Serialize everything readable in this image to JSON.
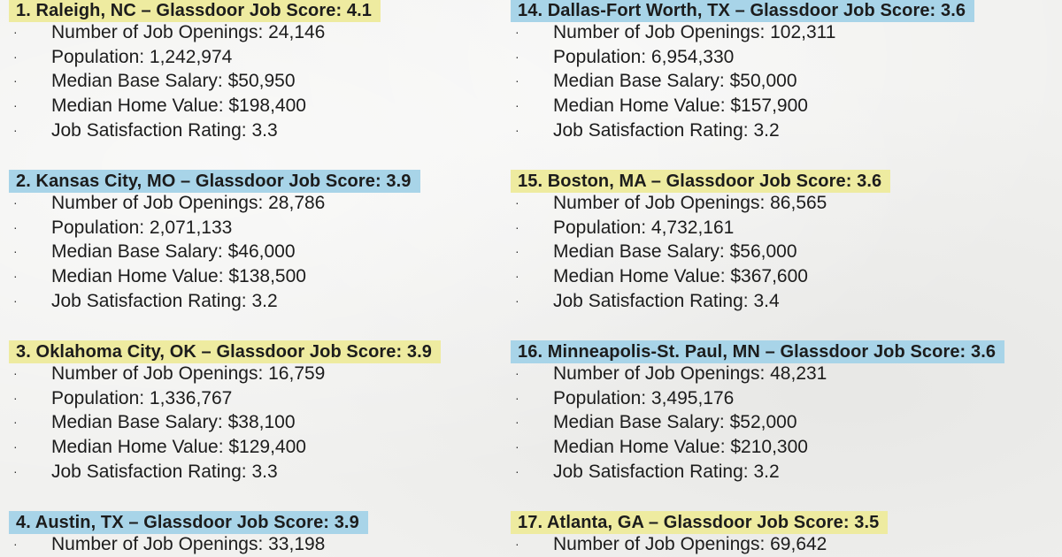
{
  "left_column": [
    {
      "header": "1. Raleigh, NC – Glassdoor Job Score: 4.1",
      "header_color": "yellow",
      "items": [
        "Number of Job Openings: 24,146",
        "Population: 1,242,974",
        "Median Base Salary: $50,950",
        "Median Home Value: $198,400",
        "Job Satisfaction Rating: 3.3"
      ]
    },
    {
      "header": "2. Kansas City, MO – Glassdoor Job Score: 3.9",
      "header_color": "blue",
      "items": [
        "Number of Job Openings: 28,786",
        "Population: 2,071,133",
        "Median Base Salary: $46,000",
        "Median Home Value: $138,500",
        "Job Satisfaction Rating: 3.2"
      ]
    },
    {
      "header": "3. Oklahoma City, OK – Glassdoor Job Score: 3.9",
      "header_color": "yellow",
      "items": [
        "Number of Job Openings: 16,759",
        "Population: 1,336,767",
        "Median Base Salary: $38,100",
        "Median Home Value: $129,400",
        "Job Satisfaction Rating: 3.3"
      ]
    },
    {
      "header": "4. Austin, TX – Glassdoor Job Score: 3.9",
      "header_color": "blue",
      "items": [
        "Number of Job Openings: 33,198"
      ]
    }
  ],
  "right_column": [
    {
      "header": "14. Dallas-Fort Worth, TX – Glassdoor Job Score: 3.6",
      "header_color": "blue",
      "items": [
        "Number of Job Openings: 102,311",
        "Population: 6,954,330",
        "Median Base Salary: $50,000",
        "Median Home Value: $157,900",
        "Job Satisfaction Rating: 3.2"
      ]
    },
    {
      "header": "15. Boston, MA – Glassdoor Job Score: 3.6",
      "header_color": "yellow",
      "items": [
        "Number of Job Openings: 86,565",
        "Population: 4,732,161",
        "Median Base Salary: $56,000",
        "Median Home Value: $367,600",
        "Job Satisfaction Rating: 3.4"
      ]
    },
    {
      "header": "16. Minneapolis-St. Paul, MN – Glassdoor Job Score: 3.6",
      "header_color": "blue",
      "items": [
        "Number of Job Openings: 48,231",
        "Population: 3,495,176",
        "Median Base Salary: $52,000",
        "Median Home Value: $210,300",
        "Job Satisfaction Rating: 3.2"
      ]
    },
    {
      "header": "17. Atlanta, GA – Glassdoor Job Score: 3.5",
      "header_color": "yellow",
      "items": [
        "Number of Job Openings: 69,642"
      ]
    }
  ],
  "bullet_glyph": "·"
}
